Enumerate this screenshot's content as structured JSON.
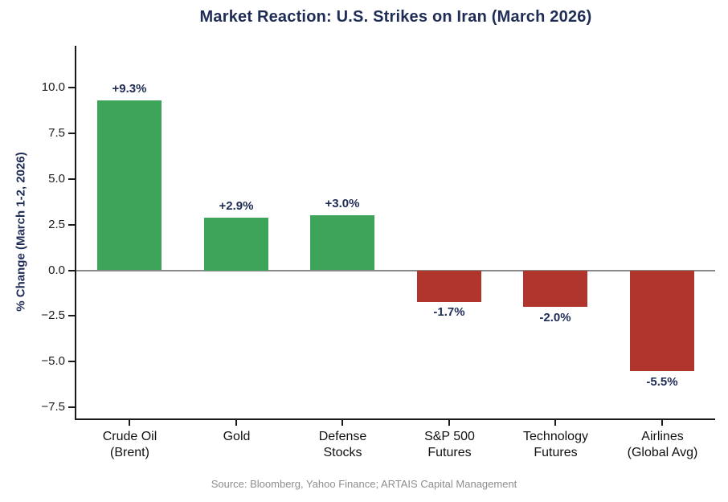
{
  "figure": {
    "source": "Source: Bloomberg, Yahoo Finance; ARTAIS Capital Management"
  },
  "chart_data": {
    "type": "bar",
    "title": "Market Reaction: U.S. Strikes on Iran (March 2026)",
    "xlabel": "",
    "ylabel": "% Change (March 1-2, 2026)",
    "categories": [
      "Crude Oil\n(Brent)",
      "Gold",
      "Defense\nStocks",
      "S&P 500\nFutures",
      "Technology\nFutures",
      "Airlines\n(Global Avg)"
    ],
    "values": [
      9.3,
      2.9,
      3.0,
      -1.7,
      -2.0,
      -5.5
    ],
    "value_labels": [
      "+9.3%",
      "+2.9%",
      "+3.0%",
      "-1.7%",
      "-2.0%",
      "-5.5%"
    ],
    "ylim": [
      -8.2,
      12.3
    ],
    "yticks": [
      10.0,
      7.5,
      5.0,
      2.5,
      0.0,
      -2.5,
      -5.0,
      -7.5
    ],
    "ytick_labels": [
      "10.0",
      "7.5",
      "5.0",
      "2.5",
      "0.0",
      "−2.5",
      "−5.0",
      "−7.5"
    ],
    "grid": false,
    "legend": "none",
    "zero_line": true,
    "bar_width_fraction": 0.6,
    "colors": {
      "positive": "#3ea45a",
      "negative": "#b0352d",
      "value_label_text": "#1f2c55",
      "title_text": "#1f2c55",
      "axis_label_text": "#1f2c55",
      "tick_text": "#1a1a1a",
      "spine": "#1a1a1a",
      "zero_line": "#8a8a8a",
      "source_text": "#8e8e8e"
    }
  }
}
